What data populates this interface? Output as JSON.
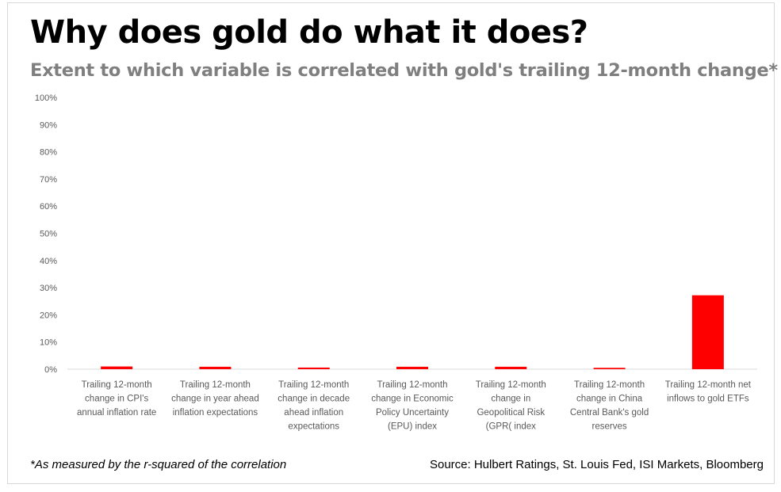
{
  "chart_data": {
    "type": "bar",
    "title": "Why does gold do what it does?",
    "subtitle": "Extent to which variable is correlated with gold's trailing 12-month change*",
    "categories": [
      [
        "Trailing 12-month",
        "change in CPI's",
        "annual inflation rate"
      ],
      [
        "Trailing 12-month",
        "change in year ahead",
        "inflation expectations"
      ],
      [
        "Trailing 12-month",
        "change in decade",
        "ahead inflation",
        "expectations"
      ],
      [
        "Trailing 12-month",
        "change in Economic",
        "Policy Uncertainty",
        "(EPU) index"
      ],
      [
        "Trailing 12-month",
        "change in",
        "Geopolitical Risk",
        "(GPR( index"
      ],
      [
        "Trailing 12-month",
        "change in China",
        "Central Bank's gold",
        "reserves"
      ],
      [
        "Trailing 12-month net",
        "inflows to gold ETFs"
      ]
    ],
    "values": [
      1.0,
      0.9,
      0.6,
      0.9,
      0.9,
      0.5,
      27.2
    ],
    "ylim": [
      0,
      100
    ],
    "yticks": [
      "0%",
      "10%",
      "20%",
      "30%",
      "40%",
      "50%",
      "60%",
      "70%",
      "80%",
      "90%",
      "100%"
    ],
    "grid": false,
    "legend": "none",
    "bar_color": "#ff0000",
    "footnote": "*As measured by the r-squared of the correlation",
    "source": "Source: Hulbert Ratings, St. Louis Fed, ISI Markets, Bloomberg"
  }
}
